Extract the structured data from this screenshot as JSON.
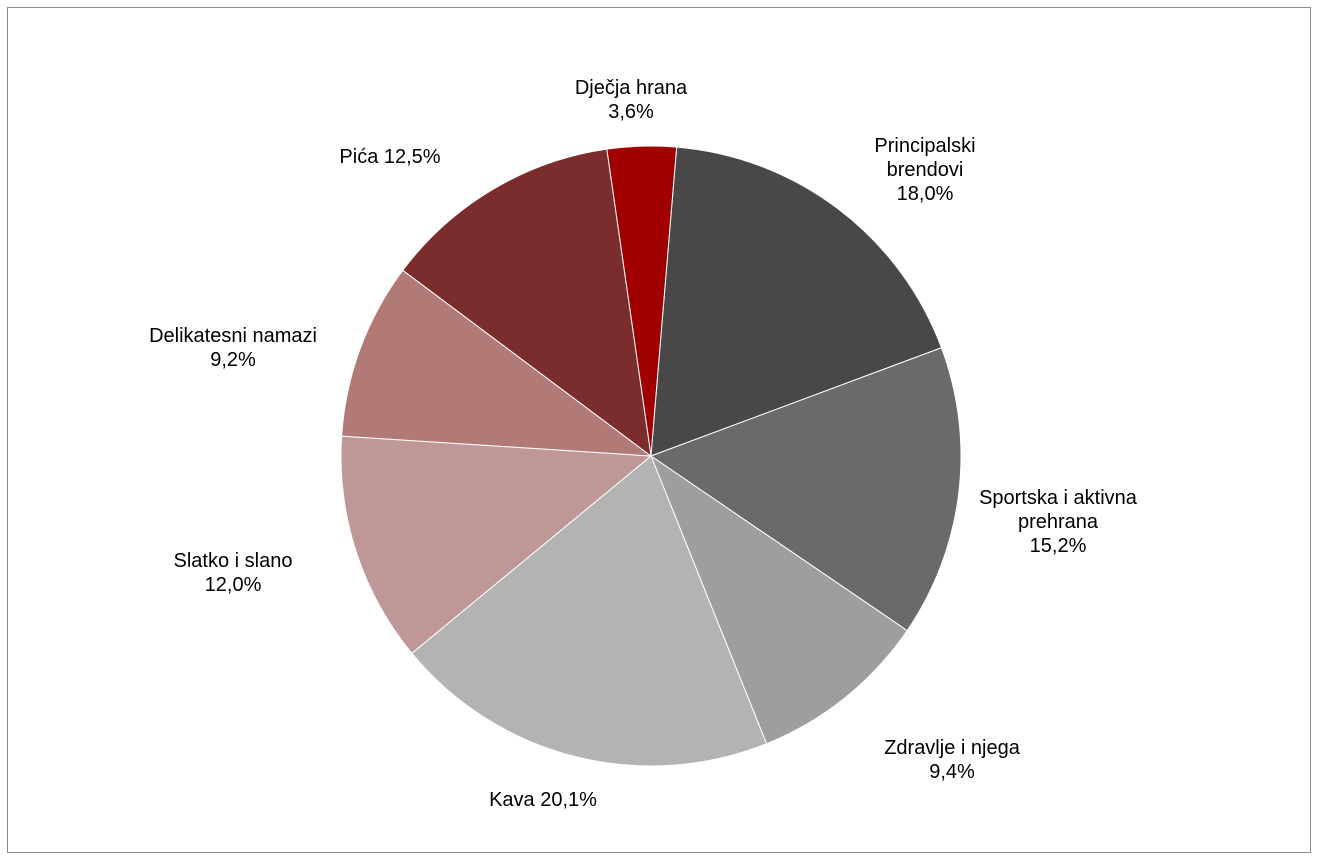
{
  "chart_data": {
    "type": "pie",
    "categories": [
      "Dječja hrana",
      "Principalski brendovi",
      "Sportska i aktivna prehrana",
      "Zdravlje i njega",
      "Kava",
      "Slatko i slano",
      "Delikatesni namazi",
      "Pića"
    ],
    "values": [
      3.6,
      18.0,
      15.2,
      9.4,
      20.1,
      12.0,
      9.2,
      12.5
    ],
    "value_labels": [
      "3,6%",
      "18,0%",
      "15,2%",
      "9,4%",
      "20,1%",
      "12,0%",
      "9,2%",
      "12,5%"
    ],
    "colors": [
      "#a00000",
      "#484848",
      "#6a6a6a",
      "#9e9e9e",
      "#b3b3b3",
      "#c09797",
      "#b27a76",
      "#7b2c2c"
    ]
  }
}
